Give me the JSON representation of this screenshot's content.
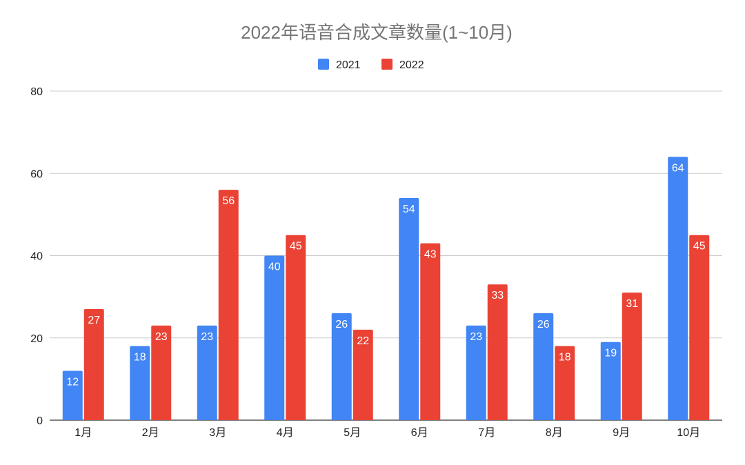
{
  "chart_data": {
    "type": "bar",
    "title": "2022年语音合成文章数量(1~10月)",
    "xlabel": "",
    "ylabel": "",
    "categories": [
      "1月",
      "2月",
      "3月",
      "4月",
      "5月",
      "6月",
      "7月",
      "8月",
      "9月",
      "10月"
    ],
    "series": [
      {
        "name": "2021",
        "color": "#4285F4",
        "values": [
          12,
          18,
          23,
          40,
          26,
          54,
          23,
          26,
          19,
          64
        ]
      },
      {
        "name": "2022",
        "color": "#EA4335",
        "values": [
          27,
          23,
          56,
          45,
          22,
          43,
          33,
          18,
          31,
          45
        ]
      }
    ],
    "ylim": [
      0,
      80
    ],
    "yticks": [
      0,
      20,
      40,
      60,
      80
    ],
    "grid": true,
    "legend_position": "top-center",
    "data_labels": true
  }
}
